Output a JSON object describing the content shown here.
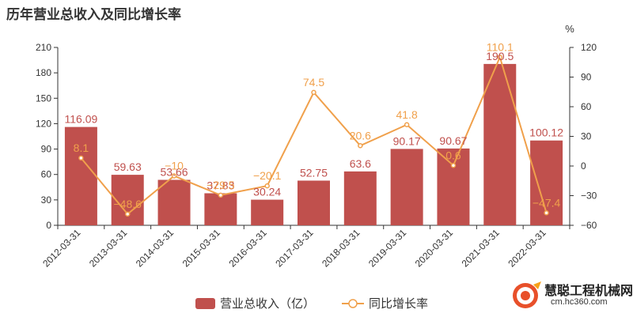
{
  "page": {
    "title": "历年营业总收入及同比增长率"
  },
  "watermark": {
    "brand": "慧聪工程机械网",
    "url": "cm.hc360.com"
  },
  "chart_data": {
    "type": "bar",
    "title": "历年营业总收入及同比增长率",
    "categories": [
      "2012-03-31",
      "2013-03-31",
      "2014-03-31",
      "2015-03-31",
      "2016-03-31",
      "2017-03-31",
      "2018-03-31",
      "2019-03-31",
      "2020-03-31",
      "2021-03-31",
      "2022-03-31"
    ],
    "series": [
      {
        "name": "营业总收入（亿）",
        "type": "bar",
        "axis": "left",
        "values": [
          116.09,
          59.63,
          53.66,
          37.83,
          30.24,
          52.75,
          63.6,
          90.17,
          90.67,
          190.5,
          100.12
        ],
        "labels": [
          "116.09",
          "59.63",
          "53.66",
          "37.83",
          "30.24",
          "52.75",
          "63.6",
          "90.17",
          "90.67",
          "190.5",
          "100.12"
        ],
        "color": "#c0504d"
      },
      {
        "name": "同比增长率",
        "type": "line",
        "axis": "right",
        "values": [
          8.1,
          -48.6,
          -10,
          -29.5,
          -20.1,
          74.5,
          20.6,
          41.8,
          0.6,
          110.1,
          -47.4
        ],
        "labels": [
          "8.1",
          "−48.6",
          "−10",
          "−29.5",
          "−20.1",
          "74.5",
          "20.6",
          "41.8",
          "0.6",
          "110.1",
          "−47.4"
        ],
        "color": "#f0a04b"
      }
    ],
    "y_left": {
      "min": 0,
      "max": 210,
      "ticks": [
        "0",
        "30",
        "60",
        "90",
        "120",
        "150",
        "180",
        "210"
      ]
    },
    "y_right": {
      "min": -60,
      "max": 120,
      "unit": "%",
      "ticks": [
        "−60",
        "−30",
        "0",
        "30",
        "60",
        "90",
        "120"
      ]
    },
    "grid": false,
    "legend_position": "bottom-center"
  }
}
